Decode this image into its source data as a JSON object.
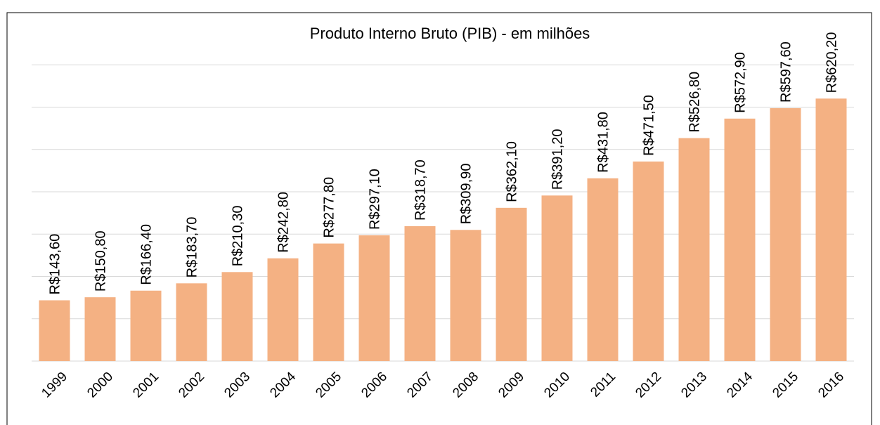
{
  "chart_data": {
    "type": "bar",
    "title": "Produto Interno Bruto (PIB) - em milhões",
    "categories": [
      "1999",
      "2000",
      "2001",
      "2002",
      "2003",
      "2004",
      "2005",
      "2006",
      "2007",
      "2008",
      "2009",
      "2010",
      "2011",
      "2012",
      "2013",
      "2014",
      "2015",
      "2016"
    ],
    "values": [
      143.6,
      150.8,
      166.4,
      183.7,
      210.3,
      242.8,
      277.8,
      297.1,
      318.7,
      309.9,
      362.1,
      391.2,
      431.8,
      471.5,
      526.8,
      572.9,
      597.6,
      620.2
    ],
    "value_labels": [
      "R$143,60",
      "R$150,80",
      "R$166,40",
      "R$183,70",
      "R$210,30",
      "R$242,80",
      "R$277,80",
      "R$297,10",
      "R$318,70",
      "R$309,90",
      "R$362,10",
      "R$391,20",
      "R$431,80",
      "R$471,50",
      "R$526,80",
      "R$572,90",
      "R$597,60",
      "R$620,20"
    ],
    "color": "#f4b183",
    "ylim": [
      0,
      800
    ],
    "yticks": [
      0,
      100,
      200,
      300,
      400,
      500,
      600,
      700
    ],
    "grid": true
  }
}
